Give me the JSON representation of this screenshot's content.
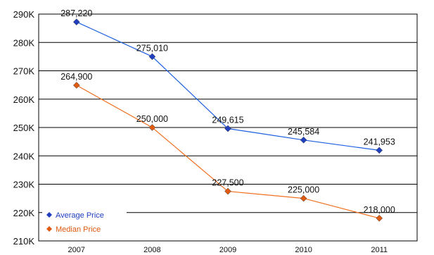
{
  "chart_data": {
    "type": "line",
    "title": "",
    "xlabel": "",
    "ylabel": "",
    "categories": [
      "2007",
      "2008",
      "2009",
      "2010",
      "2011"
    ],
    "ylim": [
      210000,
      290000
    ],
    "yticks": [
      210000,
      220000,
      230000,
      240000,
      250000,
      260000,
      270000,
      280000,
      290000
    ],
    "ytick_labels": [
      "210K",
      "220K",
      "230K",
      "240K",
      "250K",
      "260K",
      "270K",
      "280K",
      "290K"
    ],
    "grid": "horizontal",
    "legend_position": "bottom-left",
    "series": [
      {
        "name": "Average Price",
        "color": "#1f5fe0",
        "marker_color": "#1f3fbf",
        "values": [
          287220,
          275010,
          249615,
          245584,
          241953
        ],
        "labels": [
          "287,220",
          "275,010",
          "249,615",
          "245,584",
          "241,953"
        ]
      },
      {
        "name": "Median Price",
        "color": "#f07020",
        "marker_color": "#e05a10",
        "values": [
          264900,
          250000,
          227500,
          225000,
          218000
        ],
        "labels": [
          "264,900",
          "250,000",
          "227,500",
          "225,000",
          "218,000"
        ]
      }
    ]
  }
}
